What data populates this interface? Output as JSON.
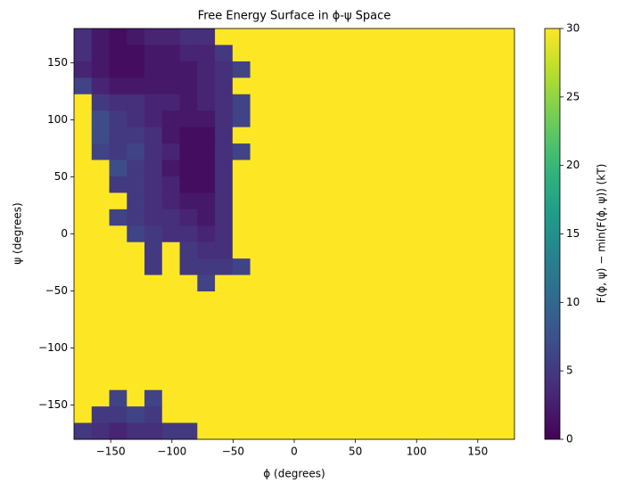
{
  "chart_data": {
    "type": "heatmap",
    "title": "Free Energy Surface in ϕ-ψ Space",
    "xlabel": "ϕ (degrees)",
    "ylabel": "ψ (degrees)",
    "colorbar_label": "F(ϕ, ψ) − min(F(ϕ, ψ)) (kT)",
    "colormap": "viridis",
    "xlim": [
      -180,
      180
    ],
    "ylim": [
      -180,
      180
    ],
    "xticks": [
      {
        "value": -150,
        "label": "−150"
      },
      {
        "value": -100,
        "label": "−100"
      },
      {
        "value": -50,
        "label": "−50"
      },
      0,
      50,
      100,
      150
    ],
    "yticks": [
      {
        "value": -150,
        "label": "−150"
      },
      {
        "value": -100,
        "label": "−100"
      },
      {
        "value": -50,
        "label": "−50"
      },
      0,
      50,
      100,
      150
    ],
    "clim": [
      0,
      30
    ],
    "cticks": [
      0,
      5,
      10,
      15,
      20,
      25,
      30
    ],
    "z": [
      [
        4,
        2,
        1,
        2,
        3,
        3,
        4,
        4,
        30,
        30,
        30,
        30,
        30,
        30,
        30,
        30,
        30,
        30,
        30,
        30,
        30,
        30,
        30,
        30,
        30
      ],
      [
        4,
        2,
        1,
        1,
        2,
        2,
        3,
        3,
        5,
        30,
        30,
        30,
        30,
        30,
        30,
        30,
        30,
        30,
        30,
        30,
        30,
        30,
        30,
        30,
        30
      ],
      [
        3,
        2,
        1,
        1,
        2,
        2,
        2,
        3,
        4,
        6,
        30,
        30,
        30,
        30,
        30,
        30,
        30,
        30,
        30,
        30,
        30,
        30,
        30,
        30,
        30
      ],
      [
        6,
        3,
        2,
        2,
        2,
        2,
        2,
        3,
        4,
        30,
        30,
        30,
        30,
        30,
        30,
        30,
        30,
        30,
        30,
        30,
        30,
        30,
        30,
        30,
        30
      ],
      [
        30,
        5,
        4,
        4,
        3,
        3,
        2,
        3,
        4,
        6,
        30,
        30,
        30,
        30,
        30,
        30,
        30,
        30,
        30,
        30,
        30,
        30,
        30,
        30,
        30
      ],
      [
        30,
        7,
        5,
        4,
        3,
        2,
        2,
        2,
        4,
        6,
        30,
        30,
        30,
        30,
        30,
        30,
        30,
        30,
        30,
        30,
        30,
        30,
        30,
        30,
        30
      ],
      [
        30,
        7,
        5,
        5,
        4,
        2,
        1,
        1,
        4,
        30,
        30,
        30,
        30,
        30,
        30,
        30,
        30,
        30,
        30,
        30,
        30,
        30,
        30,
        30,
        30
      ],
      [
        30,
        6,
        5,
        6,
        4,
        3,
        1,
        1,
        4,
        6,
        30,
        30,
        30,
        30,
        30,
        30,
        30,
        30,
        30,
        30,
        30,
        30,
        30,
        30,
        30
      ],
      [
        30,
        30,
        7,
        5,
        4,
        2,
        1,
        1,
        4,
        30,
        30,
        30,
        30,
        30,
        30,
        30,
        30,
        30,
        30,
        30,
        30,
        30,
        30,
        30,
        30
      ],
      [
        30,
        30,
        5,
        5,
        4,
        3,
        1,
        1,
        4,
        30,
        30,
        30,
        30,
        30,
        30,
        30,
        30,
        30,
        30,
        30,
        30,
        30,
        30,
        30,
        30
      ],
      [
        30,
        30,
        30,
        5,
        4,
        3,
        2,
        2,
        4,
        30,
        30,
        30,
        30,
        30,
        30,
        30,
        30,
        30,
        30,
        30,
        30,
        30,
        30,
        30,
        30
      ],
      [
        30,
        30,
        6,
        5,
        4,
        4,
        3,
        2,
        4,
        30,
        30,
        30,
        30,
        30,
        30,
        30,
        30,
        30,
        30,
        30,
        30,
        30,
        30,
        30,
        30
      ],
      [
        30,
        30,
        30,
        6,
        5,
        4,
        4,
        3,
        4,
        30,
        30,
        30,
        30,
        30,
        30,
        30,
        30,
        30,
        30,
        30,
        30,
        30,
        30,
        30,
        30
      ],
      [
        30,
        30,
        30,
        30,
        5,
        30,
        5,
        4,
        4,
        30,
        30,
        30,
        30,
        30,
        30,
        30,
        30,
        30,
        30,
        30,
        30,
        30,
        30,
        30,
        30
      ],
      [
        30,
        30,
        30,
        30,
        5,
        30,
        5,
        5,
        5,
        6,
        30,
        30,
        30,
        30,
        30,
        30,
        30,
        30,
        30,
        30,
        30,
        30,
        30,
        30,
        30
      ],
      [
        30,
        30,
        30,
        30,
        30,
        30,
        30,
        6,
        30,
        30,
        30,
        30,
        30,
        30,
        30,
        30,
        30,
        30,
        30,
        30,
        30,
        30,
        30,
        30,
        30
      ],
      [
        30,
        30,
        30,
        30,
        30,
        30,
        30,
        30,
        30,
        30,
        30,
        30,
        30,
        30,
        30,
        30,
        30,
        30,
        30,
        30,
        30,
        30,
        30,
        30,
        30
      ],
      [
        30,
        30,
        30,
        30,
        30,
        30,
        30,
        30,
        30,
        30,
        30,
        30,
        30,
        30,
        30,
        30,
        30,
        30,
        30,
        30,
        30,
        30,
        30,
        30,
        30
      ],
      [
        30,
        30,
        30,
        30,
        30,
        30,
        30,
        30,
        30,
        30,
        30,
        30,
        30,
        30,
        30,
        30,
        30,
        30,
        30,
        30,
        30,
        30,
        30,
        30,
        30
      ],
      [
        30,
        30,
        30,
        30,
        30,
        30,
        30,
        30,
        30,
        30,
        30,
        30,
        30,
        30,
        30,
        30,
        30,
        30,
        30,
        30,
        30,
        30,
        30,
        30,
        30
      ],
      [
        30,
        30,
        30,
        30,
        30,
        30,
        30,
        30,
        30,
        30,
        30,
        30,
        30,
        30,
        30,
        30,
        30,
        30,
        30,
        30,
        30,
        30,
        30,
        30,
        30
      ],
      [
        30,
        30,
        30,
        30,
        30,
        30,
        30,
        30,
        30,
        30,
        30,
        30,
        30,
        30,
        30,
        30,
        30,
        30,
        30,
        30,
        30,
        30,
        30,
        30,
        30
      ],
      [
        30,
        30,
        6,
        30,
        6,
        30,
        30,
        30,
        30,
        30,
        30,
        30,
        30,
        30,
        30,
        30,
        30,
        30,
        30,
        30,
        30,
        30,
        30,
        30,
        30
      ],
      [
        30,
        5,
        5,
        6,
        5,
        30,
        30,
        30,
        30,
        30,
        30,
        30,
        30,
        30,
        30,
        30,
        30,
        30,
        30,
        30,
        30,
        30,
        30,
        30,
        30
      ],
      [
        5,
        4,
        3,
        4,
        4,
        5,
        5,
        30,
        30,
        30,
        30,
        30,
        30,
        30,
        30,
        30,
        30,
        30,
        30,
        30,
        30,
        30,
        30,
        30,
        30
      ]
    ]
  }
}
